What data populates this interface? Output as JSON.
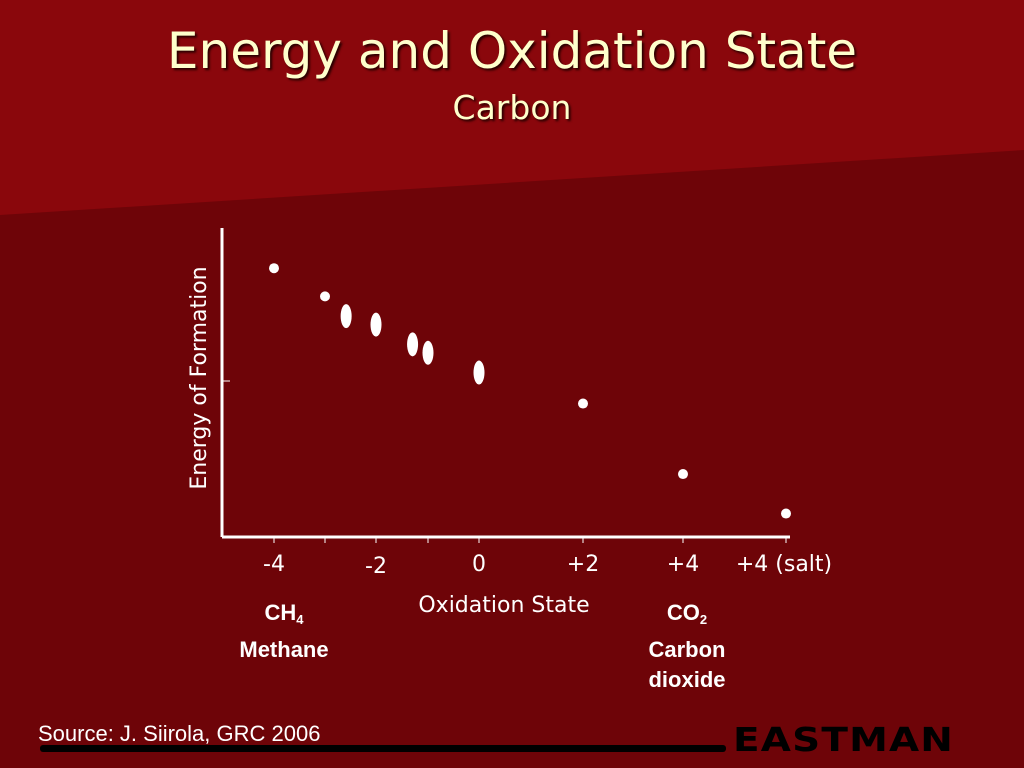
{
  "slide": {
    "title": "Energy and Oxidation State",
    "subtitle": "Carbon",
    "source": "Source: J. Siirola, GRC 2006",
    "logo": "EASTMAN",
    "colors": {
      "background": "#6e0408",
      "band": "#8a070c",
      "title": "#ffffcc",
      "marks": "#ffffff"
    }
  },
  "annotations": {
    "methane_formula": "CH",
    "methane_subscript": "4",
    "methane_name": "Methane",
    "co2_formula": "CO",
    "co2_subscript": "2",
    "co2_name_line1": "Carbon",
    "co2_name_line2": "dioxide"
  },
  "chart_data": {
    "type": "scatter",
    "title": "",
    "xlabel": "Oxidation State",
    "ylabel": "Energy of Formation",
    "x_ticks": [
      {
        "value": -4,
        "label": "-4"
      },
      {
        "value": -3,
        "label": ""
      },
      {
        "value": -2,
        "label": "-2"
      },
      {
        "value": -1,
        "label": ""
      },
      {
        "value": 0,
        "label": "0"
      },
      {
        "value": 2,
        "label": "+2"
      },
      {
        "value": 4,
        "label": "+4"
      },
      {
        "value": 6,
        "label": "+4 (salt)"
      }
    ],
    "xlim": [
      -5,
      6
    ],
    "ylim": [
      0,
      10
    ],
    "grid": false,
    "points": [
      {
        "x": -4,
        "y": 9.0
      },
      {
        "x": -3,
        "y": 8.0
      },
      {
        "x": -2.6,
        "y": 7.3,
        "elongated": true
      },
      {
        "x": -2,
        "y": 7.0,
        "elongated": true
      },
      {
        "x": -1.3,
        "y": 6.3,
        "elongated": true
      },
      {
        "x": -1,
        "y": 6.0,
        "elongated": true
      },
      {
        "x": 0,
        "y": 5.3,
        "elongated": true
      },
      {
        "x": 2,
        "y": 4.2
      },
      {
        "x": 4,
        "y": 1.7
      },
      {
        "x": 6,
        "y": 0.3
      }
    ]
  }
}
